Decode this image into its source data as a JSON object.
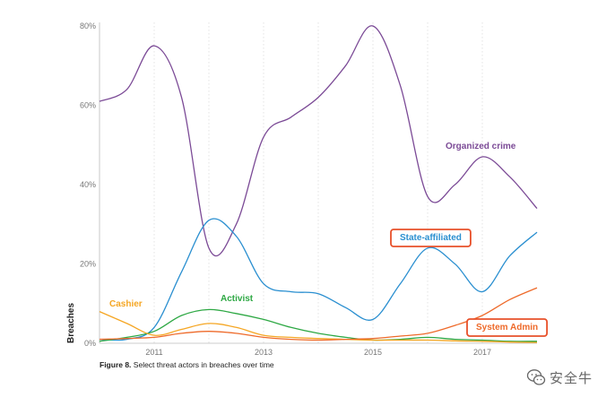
{
  "chart_data": {
    "type": "line",
    "ylabel": "Breaches",
    "ylim": [
      0,
      80
    ],
    "yticks": [
      "0%",
      "20%",
      "40%",
      "60%",
      "80%"
    ],
    "xlim": [
      2010.0,
      2018.0
    ],
    "xticks": [
      "2011",
      "2013",
      "2015",
      "2017"
    ],
    "grid": "vertical dotted",
    "series": [
      {
        "name": "Organized crime",
        "color": "#7b4a96",
        "x": [
          2010.0,
          2010.5,
          2011.0,
          2011.5,
          2012.0,
          2012.5,
          2013.0,
          2013.5,
          2014.0,
          2014.5,
          2015.0,
          2015.5,
          2016.0,
          2016.5,
          2017.0,
          2017.5,
          2018.0
        ],
        "values": [
          61,
          64,
          75,
          62,
          24,
          30,
          52,
          57,
          62,
          70,
          80,
          65,
          37,
          40,
          47,
          42,
          34
        ]
      },
      {
        "name": "State-affiliated",
        "color": "#2a8fd0",
        "boxed": true,
        "x": [
          2010.0,
          2010.5,
          2011.0,
          2011.5,
          2012.0,
          2012.5,
          2013.0,
          2013.5,
          2014.0,
          2014.5,
          2015.0,
          2015.5,
          2016.0,
          2016.5,
          2017.0,
          2017.5,
          2018.0
        ],
        "values": [
          1,
          1,
          4,
          18,
          31,
          27,
          15,
          13,
          12.5,
          9,
          6,
          15,
          24,
          20,
          13,
          22,
          28
        ]
      },
      {
        "name": "Activist",
        "color": "#2ea844",
        "x": [
          2010.0,
          2010.5,
          2011.0,
          2011.5,
          2012.0,
          2012.5,
          2013.0,
          2013.5,
          2014.0,
          2014.5,
          2015.0,
          2015.5,
          2016.0,
          2016.5,
          2017.0,
          2017.5,
          2018.0
        ],
        "values": [
          0.5,
          1.5,
          3,
          7,
          8.5,
          7.5,
          6,
          4,
          2.5,
          1.5,
          0.8,
          1,
          1.5,
          1,
          0.8,
          0.5,
          0.5
        ]
      },
      {
        "name": "Cashier",
        "color": "#f5a623",
        "x": [
          2010.0,
          2010.5,
          2011.0,
          2011.5,
          2012.0,
          2012.5,
          2013.0,
          2013.5,
          2014.0,
          2014.5,
          2015.0,
          2015.5,
          2016.0,
          2016.5,
          2017.0,
          2017.5,
          2018.0
        ],
        "values": [
          8,
          5,
          2,
          3.5,
          5,
          4,
          2,
          1.5,
          1.2,
          1,
          0.8,
          0.8,
          0.8,
          0.6,
          0.5,
          0.3,
          0.2
        ]
      },
      {
        "name": "System Admin",
        "color": "#ee6a2a",
        "boxed": true,
        "x": [
          2010.0,
          2010.5,
          2011.0,
          2011.5,
          2012.0,
          2012.5,
          2013.0,
          2013.5,
          2014.0,
          2014.5,
          2015.0,
          2015.5,
          2016.0,
          2016.5,
          2017.0,
          2017.5,
          2018.0
        ],
        "values": [
          1,
          1.2,
          1.5,
          2.5,
          3,
          2.5,
          1.5,
          1,
          0.8,
          1,
          1.2,
          1.8,
          2.5,
          4.5,
          7,
          11,
          14
        ]
      }
    ]
  },
  "caption": {
    "figure": "Figure 8.",
    "text": " Select threat actors in breaches over time"
  },
  "watermark": {
    "text": "安全牛",
    "icon": "wechat-icon"
  }
}
